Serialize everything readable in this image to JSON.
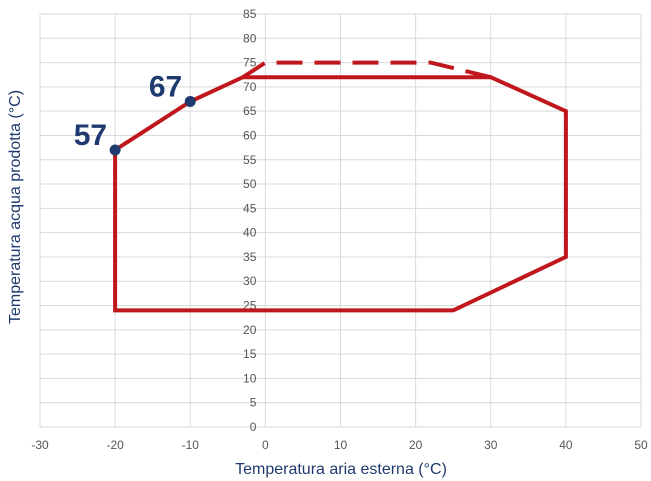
{
  "chart_data": {
    "type": "line",
    "xlabel": "Temperatura aria esterna (°C)",
    "ylabel": "Temperatura acqua prodotta (°C)",
    "xlim": [
      -30,
      50
    ],
    "ylim": [
      0,
      85
    ],
    "xticks": [
      -30,
      -20,
      -10,
      0,
      10,
      20,
      30,
      40,
      50
    ],
    "yticks": [
      0,
      5,
      10,
      15,
      20,
      25,
      30,
      35,
      40,
      45,
      50,
      55,
      60,
      65,
      70,
      75,
      80,
      85
    ],
    "grid": true,
    "series": [
      {
        "style": "solid",
        "color": "#c0171d",
        "points": [
          [
            -20,
            57
          ],
          [
            -10,
            67
          ],
          [
            -3,
            72
          ],
          [
            30,
            72
          ],
          [
            40,
            65
          ],
          [
            40,
            35
          ],
          [
            25,
            24
          ],
          [
            -20,
            24
          ],
          [
            -20,
            57
          ]
        ]
      },
      {
        "style": "dashed",
        "color": "#c0171d",
        "points": [
          [
            -3,
            72
          ],
          [
            0,
            75
          ],
          [
            22,
            75
          ],
          [
            30,
            72
          ]
        ]
      }
    ],
    "markers": [
      {
        "x": -20,
        "y": 57,
        "label": "57"
      },
      {
        "x": -10,
        "y": 67,
        "label": "67"
      }
    ],
    "colors": {
      "grid": "#d9d9d9",
      "axis_title": "#1f3a6e",
      "marker": "#1f3a6e",
      "tick": "#555555"
    }
  }
}
